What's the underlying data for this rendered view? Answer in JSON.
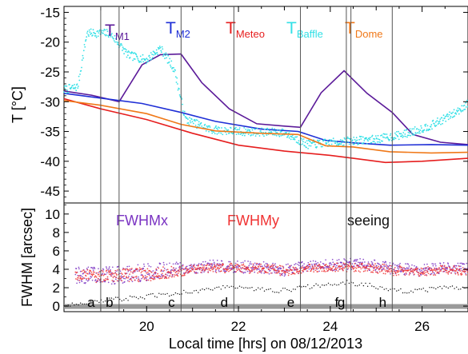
{
  "chart_data": [
    {
      "type": "line",
      "panel": "top",
      "ylabel": "T [°C]",
      "ylim": [
        -47,
        -14
      ],
      "xlim": [
        18.2,
        27.0
      ],
      "grid": false,
      "yticks": [
        -15,
        -20,
        -25,
        -30,
        -35,
        -40,
        -45
      ],
      "series": [
        {
          "name": "T_M1",
          "label_main": "T",
          "label_sub": "M1",
          "color": "#5b1a99",
          "x": [
            18.2,
            18.8,
            19.4,
            19.9,
            20.3,
            20.75,
            21.2,
            21.8,
            22.4,
            23.0,
            23.35,
            23.8,
            24.3,
            24.8,
            25.35,
            25.8,
            26.4,
            27.0
          ],
          "y": [
            -28.2,
            -28.9,
            -30.0,
            -23.8,
            -22.1,
            -22.0,
            -26.8,
            -31.2,
            -33.7,
            -34.1,
            -34.3,
            -28.5,
            -24.8,
            -28.6,
            -31.8,
            -35.5,
            -36.8,
            -37.2
          ]
        },
        {
          "name": "T_M2",
          "label_main": "T",
          "label_sub": "M2",
          "color": "#1f2fd6",
          "x": [
            18.2,
            19.0,
            19.9,
            20.75,
            21.5,
            22.5,
            23.3,
            23.9,
            24.5,
            25.3,
            26.2,
            27.0
          ],
          "y": [
            -28.6,
            -29.4,
            -30.3,
            -31.8,
            -33.3,
            -34.6,
            -35.0,
            -36.5,
            -36.9,
            -37.3,
            -37.2,
            -37.3
          ]
        },
        {
          "name": "T_Meteo",
          "label_main": "T",
          "label_sub": "Meteo",
          "color": "#e61e1e",
          "x": [
            18.2,
            19.0,
            20.0,
            21.0,
            22.0,
            23.0,
            24.0,
            24.6,
            25.2,
            26.0,
            27.0
          ],
          "y": [
            -29.5,
            -31.2,
            -33.0,
            -35.3,
            -37.3,
            -38.3,
            -39.0,
            -39.6,
            -40.2,
            -40.0,
            -39.5
          ]
        },
        {
          "name": "T_Baffle",
          "label_main": "T",
          "label_sub": "Baffle",
          "color": "#33e0e6",
          "x": [
            18.2,
            18.5,
            18.7,
            19.2,
            19.6,
            20.0,
            20.3,
            20.6,
            20.85,
            21.4,
            22.0,
            23.0,
            23.5,
            24.0,
            24.4,
            25.0,
            25.6,
            26.2,
            26.7,
            27.0
          ],
          "y": [
            -28.0,
            -27.5,
            -18.5,
            -18.5,
            -22.2,
            -23.0,
            -21.0,
            -24.5,
            -33.0,
            -34.7,
            -35.0,
            -35.2,
            -37.2,
            -36.9,
            -36.6,
            -36.3,
            -35.5,
            -34.0,
            -32.0,
            -30.3
          ]
        },
        {
          "name": "T_Dome",
          "label_main": "T",
          "label_sub": "Dome",
          "color": "#f07818",
          "x": [
            18.2,
            19.0,
            20.0,
            20.75,
            21.5,
            22.5,
            23.3,
            23.9,
            24.5,
            25.3,
            26.2,
            27.0
          ],
          "y": [
            -29.8,
            -30.6,
            -32.0,
            -33.8,
            -34.9,
            -35.3,
            -35.5,
            -37.4,
            -37.6,
            -38.4,
            -38.6,
            -38.5
          ]
        }
      ]
    },
    {
      "type": "scatter",
      "panel": "bottom",
      "xlabel": "Local time [hrs] on 08/12/2013",
      "ylabel": "FWHM [arcsec]",
      "ylim": [
        -0.6,
        11.2
      ],
      "xlim": [
        18.2,
        27.0
      ],
      "grid": false,
      "yticks": [
        0,
        2,
        4,
        6,
        8,
        10
      ],
      "xticks": [
        20,
        22,
        24,
        26
      ],
      "series": [
        {
          "name": "FWHMx",
          "color": "#7a33c2",
          "x": [
            18.5,
            19.0,
            19.5,
            20.0,
            20.5,
            21.0,
            21.5,
            22.0,
            22.5,
            23.0,
            23.5,
            24.0,
            24.5,
            25.0,
            25.5,
            26.0,
            26.5,
            27.0
          ],
          "y": [
            3.8,
            3.8,
            3.9,
            4.2,
            4.4,
            4.3,
            4.6,
            4.5,
            4.4,
            4.2,
            4.5,
            4.6,
            4.8,
            4.6,
            4.2,
            4.1,
            4.3,
            4.2
          ],
          "y2": [
            2.9,
            2.8,
            2.9,
            3.2,
            3.6,
            4.0,
            4.2,
            4.0,
            4.0,
            3.7,
            4.2,
            4.2,
            4.4,
            4.0,
            3.8,
            3.7,
            4.0,
            3.9
          ]
        },
        {
          "name": "FWHMy",
          "color": "#f03232",
          "x": [
            18.5,
            19.0,
            19.5,
            20.0,
            20.5,
            21.0,
            21.5,
            22.0,
            22.5,
            23.0,
            23.5,
            24.0,
            24.5,
            25.0,
            25.5,
            26.0,
            26.5,
            27.0
          ],
          "y": [
            3.6,
            3.6,
            3.7,
            3.9,
            4.0,
            4.1,
            4.3,
            4.3,
            4.3,
            4.0,
            4.2,
            4.3,
            4.4,
            4.3,
            4.0,
            3.9,
            4.1,
            4.0
          ],
          "y2": [
            3.0,
            2.9,
            3.0,
            3.0,
            3.4,
            3.8,
            4.0,
            3.9,
            3.9,
            3.6,
            4.0,
            4.0,
            4.1,
            3.9,
            3.6,
            3.6,
            3.8,
            3.7
          ]
        },
        {
          "name": "seeing",
          "color": "#111111",
          "x": [
            18.3,
            18.8,
            19.3,
            19.8,
            20.3,
            20.8,
            21.3,
            21.8,
            22.3,
            22.8,
            23.3,
            23.8,
            24.3,
            24.8,
            25.3,
            25.8,
            26.3,
            26.8
          ],
          "y": [
            0.2,
            0.4,
            0.7,
            0.9,
            1.2,
            1.5,
            1.8,
            2.1,
            1.9,
            1.6,
            1.9,
            2.3,
            2.6,
            2.3,
            1.7,
            1.6,
            1.9,
            2.0
          ]
        }
      ],
      "markers": [
        {
          "label": "a",
          "x": 19.0
        },
        {
          "label": "b",
          "x": 19.4
        },
        {
          "label": "c",
          "x": 20.75
        },
        {
          "label": "d",
          "x": 21.9
        },
        {
          "label": "e",
          "x": 23.35
        },
        {
          "label": "f",
          "x": 24.35
        },
        {
          "label": "g",
          "x": 24.45
        },
        {
          "label": "h",
          "x": 25.35
        }
      ]
    }
  ]
}
